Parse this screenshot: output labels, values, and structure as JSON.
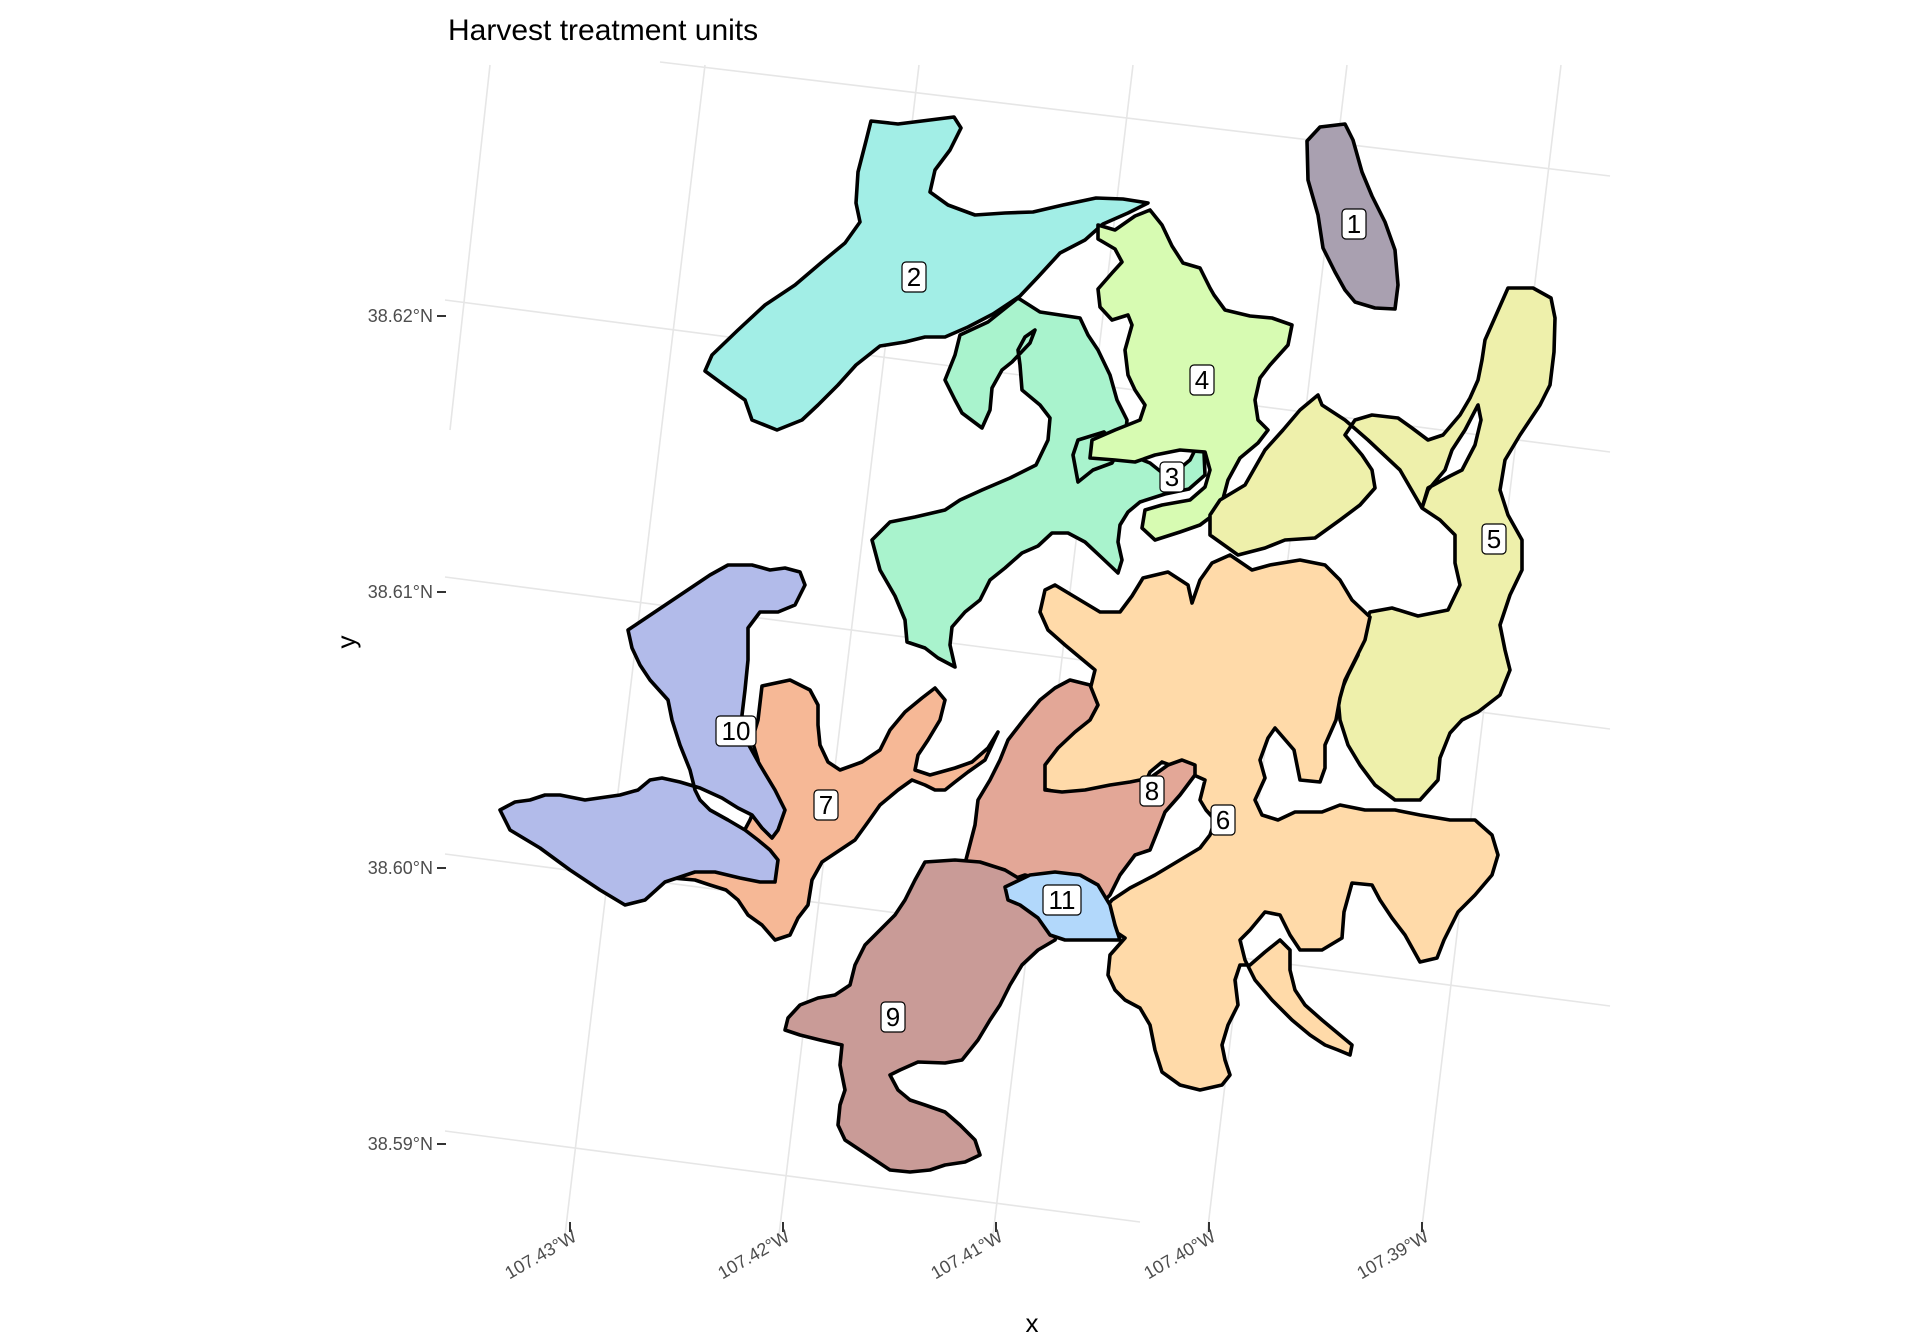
{
  "title": "Harvest treatment units",
  "axes": {
    "x_title": "x",
    "y_title": "y"
  },
  "lat_ticks": [
    "38.62°N",
    "38.61°N",
    "38.60°N",
    "38.59°N"
  ],
  "lon_ticks": [
    "107.43°W",
    "107.42°W",
    "107.41°W",
    "107.40°W",
    "107.39°W"
  ],
  "units": [
    {
      "id": "1",
      "label": "1",
      "color": "#a9a0b0"
    },
    {
      "id": "2",
      "label": "2",
      "color": "#a2eee6"
    },
    {
      "id": "3",
      "label": "3",
      "color": "#a9f3cd"
    },
    {
      "id": "4",
      "label": "4",
      "color": "#d7fbb2"
    },
    {
      "id": "5",
      "label": "5",
      "color": "#eef0ab"
    },
    {
      "id": "6",
      "label": "6",
      "color": "#ffdaa9"
    },
    {
      "id": "7",
      "label": "7",
      "color": "#f6b896"
    },
    {
      "id": "8",
      "label": "8",
      "color": "#e3a797"
    },
    {
      "id": "9",
      "label": "9",
      "color": "#c99b97"
    },
    {
      "id": "10",
      "label": "10",
      "color": "#b2bbea"
    },
    {
      "id": "11",
      "label": "11",
      "color": "#b2d8fb"
    }
  ]
}
